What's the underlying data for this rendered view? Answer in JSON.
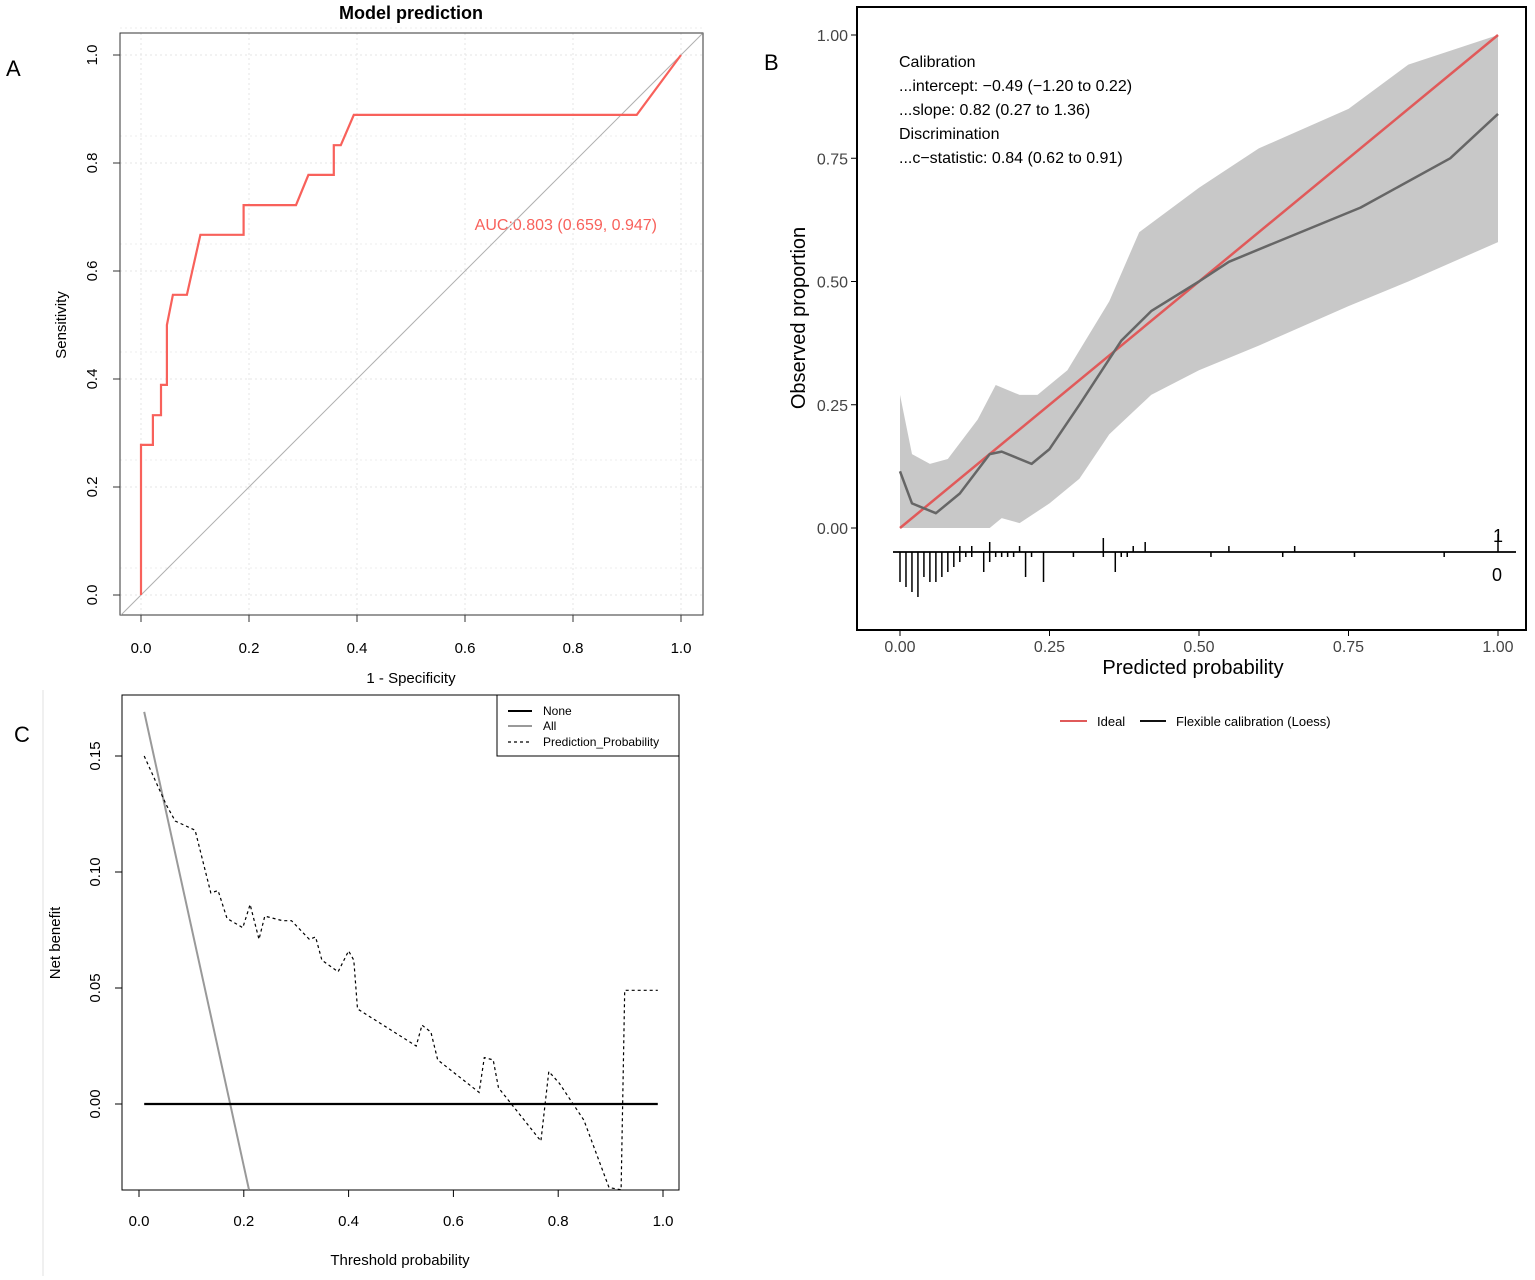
{
  "panel_labels": {
    "a": "A",
    "b": "B",
    "c": "C"
  },
  "chart_data": [
    {
      "type": "line",
      "panel": "A",
      "title": "Model prediction",
      "xlabel": "1 - Specificity",
      "ylabel": "Sensitivity",
      "xlim": [
        0,
        1
      ],
      "ylim": [
        0,
        1
      ],
      "xticks": [
        "0.0",
        "0.2",
        "0.4",
        "0.6",
        "0.8",
        "1.0"
      ],
      "yticks": [
        "0.0",
        "0.2",
        "0.4",
        "0.6",
        "0.8",
        "1.0"
      ],
      "grid": true,
      "annotation": "AUC:0.803 (0.659, 0.947)",
      "colors": {
        "roc": "#f8615b",
        "diagonal": "#b0b0b0"
      },
      "series": [
        {
          "name": "ROC",
          "x": [
            0,
            0,
            0.022,
            0.022,
            0.037,
            0.037,
            0.048,
            0.048,
            0.059,
            0.085,
            0.11,
            0.19,
            0.19,
            0.287,
            0.31,
            0.357,
            0.357,
            0.37,
            0.394,
            0.918,
            1
          ],
          "y": [
            0,
            0.278,
            0.278,
            0.333,
            0.333,
            0.389,
            0.389,
            0.5,
            0.556,
            0.556,
            0.667,
            0.667,
            0.722,
            0.722,
            0.778,
            0.778,
            0.833,
            0.833,
            0.889,
            0.889,
            1
          ]
        },
        {
          "name": "Reference",
          "x": [
            -0.04,
            1.04
          ],
          "y": [
            -0.04,
            1.04
          ]
        }
      ]
    },
    {
      "type": "line",
      "panel": "B",
      "xlabel": "Predicted probability",
      "ylabel": "Observed proportion",
      "xlim": [
        0,
        1
      ],
      "ylim": [
        0,
        1
      ],
      "xticks": [
        "0.00",
        "0.25",
        "0.50",
        "0.75",
        "1.00"
      ],
      "yticks": [
        "0.00",
        "0.25",
        "0.50",
        "0.75",
        "1.00"
      ],
      "grid": false,
      "stats_text": [
        "Calibration",
        "...intercept: −0.49 (−1.20 to 0.22)",
        "...slope: 0.82 (0.27 to 1.36)",
        "Discrimination",
        "...c−statistic: 0.84 (0.62 to 0.91)"
      ],
      "legend": {
        "placement": "bottom",
        "entries": [
          "Ideal",
          "Flexible calibration (Loess)"
        ]
      },
      "colors": {
        "ideal": "#e05a5a",
        "loess": "#666666",
        "ci": "#c8c8c8"
      },
      "ideal": {
        "x": [
          0,
          1
        ],
        "y": [
          0,
          1
        ]
      },
      "loess": {
        "x": [
          0,
          0.02,
          0.06,
          0.1,
          0.15,
          0.17,
          0.22,
          0.25,
          0.3,
          0.37,
          0.42,
          0.5,
          0.55,
          0.65,
          0.77,
          0.92,
          1
        ],
        "y": [
          0.115,
          0.05,
          0.03,
          0.07,
          0.15,
          0.155,
          0.13,
          0.16,
          0.25,
          0.38,
          0.44,
          0.5,
          0.54,
          0.59,
          0.65,
          0.75,
          0.84
        ]
      },
      "ci_upper": {
        "x": [
          0,
          0.02,
          0.05,
          0.08,
          0.13,
          0.16,
          0.2,
          0.23,
          0.28,
          0.35,
          0.4,
          0.5,
          0.6,
          0.75,
          0.85,
          1
        ],
        "y": [
          0.27,
          0.15,
          0.13,
          0.14,
          0.22,
          0.29,
          0.27,
          0.27,
          0.32,
          0.46,
          0.6,
          0.69,
          0.77,
          0.85,
          0.94,
          1.0
        ]
      },
      "ci_lower": {
        "x": [
          0,
          0.15,
          0.17,
          0.2,
          0.25,
          0.3,
          0.35,
          0.42,
          0.5,
          0.6,
          0.75,
          0.85,
          1
        ],
        "y": [
          0,
          0,
          0.02,
          0.01,
          0.05,
          0.1,
          0.19,
          0.27,
          0.32,
          0.37,
          0.45,
          0.5,
          0.58
        ]
      },
      "rug_labels": {
        "events": "1",
        "nonevents": "0"
      },
      "rug_events": {
        "x": [
          0.1,
          0.12,
          0.15,
          0.2,
          0.34,
          0.39,
          0.41,
          0.55,
          0.66,
          1.0
        ],
        "count": [
          1,
          1,
          2,
          1,
          3,
          1,
          2,
          1,
          1,
          4
        ]
      },
      "rug_nonevents": {
        "x": [
          0,
          0.01,
          0.02,
          0.03,
          0.04,
          0.05,
          0.06,
          0.07,
          0.08,
          0.09,
          0.1,
          0.11,
          0.12,
          0.14,
          0.15,
          0.16,
          0.17,
          0.18,
          0.19,
          0.21,
          0.22,
          0.24,
          0.29,
          0.34,
          0.36,
          0.37,
          0.38,
          0.52,
          0.64,
          0.76,
          0.91
        ],
        "count": [
          6,
          7,
          8,
          9,
          5,
          6,
          6,
          5,
          4,
          3,
          2,
          1,
          1,
          4,
          2,
          1,
          1,
          1,
          1,
          5,
          1,
          6,
          1,
          1,
          4,
          1,
          1,
          1,
          1,
          1,
          1
        ]
      }
    },
    {
      "type": "line",
      "panel": "C",
      "xlabel": "Threshold probability",
      "ylabel": "Net benefit",
      "xlim": [
        -0.03,
        1.03
      ],
      "ylim": [
        -0.037,
        0.176
      ],
      "xticks": [
        "0.0",
        "0.2",
        "0.4",
        "0.6",
        "0.8",
        "1.0"
      ],
      "yticks": [
        "0.00",
        "0.05",
        "0.10",
        "0.15"
      ],
      "grid": false,
      "legend": {
        "placement": "top-right",
        "entries": [
          "None",
          "All",
          "Prediction_Probability"
        ]
      },
      "series": [
        {
          "name": "None",
          "x": [
            0.01,
            0.99
          ],
          "y": [
            0,
            0
          ]
        },
        {
          "name": "All",
          "x": [
            0.01,
            0.21
          ],
          "y": [
            0.169,
            -0.037
          ]
        },
        {
          "name": "Prediction_Probability",
          "x": [
            0.01,
            0.052,
            0.069,
            0.107,
            0.137,
            0.151,
            0.168,
            0.198,
            0.212,
            0.229,
            0.24,
            0.274,
            0.291,
            0.325,
            0.337,
            0.349,
            0.38,
            0.4,
            0.41,
            0.417,
            0.529,
            0.54,
            0.557,
            0.57,
            0.649,
            0.659,
            0.676,
            0.686,
            0.767,
            0.782,
            0.802,
            0.849,
            0.897,
            0.92,
            0.927,
            0.99
          ],
          "y": [
            0.15,
            0.129,
            0.122,
            0.118,
            0.091,
            0.092,
            0.08,
            0.076,
            0.086,
            0.071,
            0.081,
            0.079,
            0.079,
            0.071,
            0.072,
            0.062,
            0.057,
            0.066,
            0.062,
            0.041,
            0.025,
            0.034,
            0.031,
            0.019,
            0.005,
            0.02,
            0.019,
            0.007,
            -0.016,
            0.014,
            0.009,
            -0.007,
            -0.036,
            -0.037,
            0.049,
            0.049
          ]
        }
      ]
    }
  ]
}
